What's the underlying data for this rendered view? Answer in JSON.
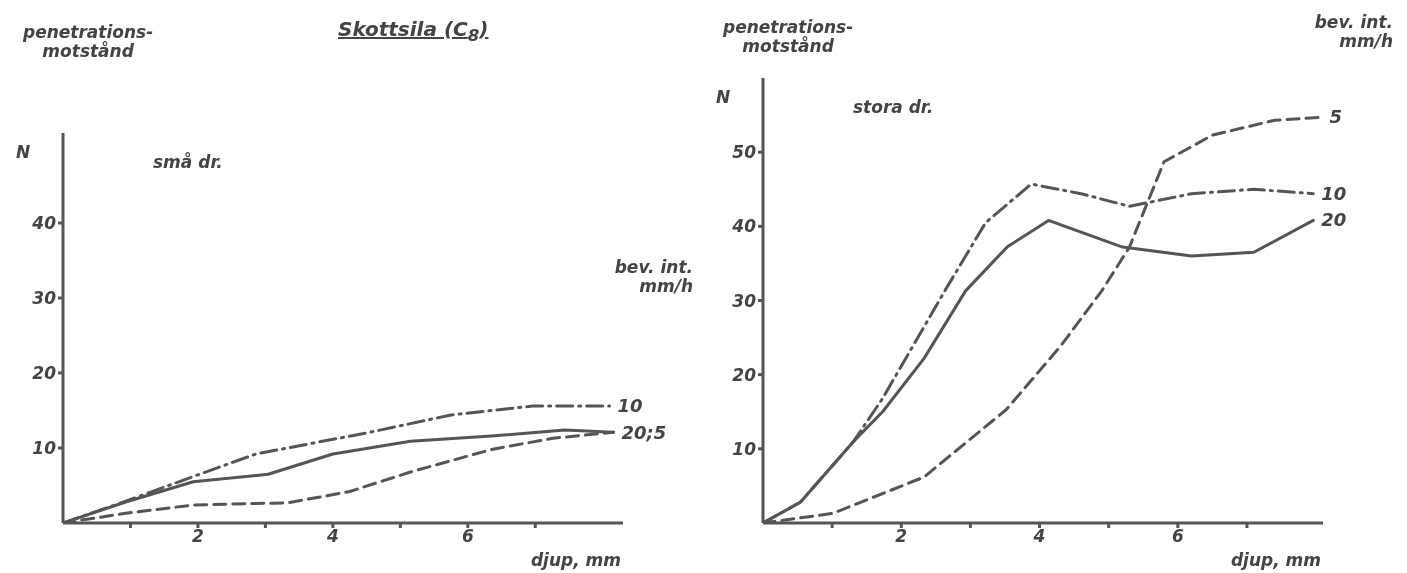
{
  "chart_data": [
    {
      "type": "line",
      "title": "Skottsila (C$_{8}$)",
      "subtitle": "små dr.",
      "ylabel": "penetrations-\nmotstånd",
      "xlabel": "djup, mm",
      "legend_title": "bev. int.\nmm/h",
      "annotations": [
        "N",
        {
          "text": "20;5",
          "x": 8.16,
          "y": 12.1
        }
      ],
      "xlim": [
        0,
        8.3
      ],
      "ylim": [
        0,
        52
      ],
      "xticks": [
        {
          "value": 1,
          "label": null
        },
        2,
        {
          "value": 3,
          "label": null
        },
        4,
        {
          "value": 5,
          "label": null
        },
        6,
        {
          "value": 7,
          "label": null
        }
      ],
      "yticks": [
        10,
        20,
        30,
        40
      ],
      "grid": false,
      "legend": false,
      "marker": "none",
      "series": [
        {
          "name": "10",
          "color": "#555555",
          "line_style": "dashdot",
          "x": [
            0,
            0.9,
            1.93,
            2.86,
            4.55,
            5.75,
            6.96,
            8.1
          ],
          "values": [
            0,
            2.8,
            6.2,
            9.2,
            12.1,
            14.4,
            15.6,
            15.6
          ]
        },
        {
          "color": "#555555",
          "line_style": "solid",
          "x": [
            0,
            0.93,
            1.93,
            3.04,
            4.0,
            5.15,
            6.35,
            7.44,
            8.16
          ],
          "values": [
            0,
            2.8,
            5.5,
            6.5,
            9.2,
            10.9,
            11.6,
            12.4,
            12.1
          ]
        },
        {
          "color": "#555555",
          "line_style": "dashed",
          "x": [
            0,
            0.93,
            1.93,
            3.34,
            4.25,
            5.15,
            6.35,
            7.26,
            8.16
          ],
          "values": [
            0,
            1.3,
            2.4,
            2.7,
            4.2,
            6.8,
            9.8,
            11.3,
            12.1
          ]
        }
      ]
    },
    {
      "type": "line",
      "subtitle": "stora dr.",
      "ylabel": "penetrations-\nmotstånd",
      "xlabel": "djup, mm",
      "legend_title": "bev. int.\nmm/h",
      "annotations": [
        "N"
      ],
      "xlim": [
        0,
        8.1
      ],
      "ylim": [
        0,
        60
      ],
      "xticks": [
        {
          "value": 1,
          "label": null
        },
        2,
        {
          "value": 3,
          "label": null
        },
        4,
        {
          "value": 5,
          "label": null
        },
        6,
        {
          "value": 7,
          "label": null
        }
      ],
      "yticks": [
        10,
        20,
        30,
        40,
        50
      ],
      "grid": false,
      "legend": false,
      "marker": "none",
      "series": [
        {
          "name": "5",
          "color": "#555555",
          "line_style": "dashed",
          "x": [
            0,
            1.01,
            2.33,
            3.52,
            4.3,
            4.9,
            5.3,
            5.8,
            6.5,
            7.4,
            8.08
          ],
          "values": [
            0,
            1.3,
            6.2,
            15.3,
            23.8,
            31.3,
            37.2,
            48.7,
            52.3,
            54.3,
            54.7
          ]
        },
        {
          "name": "10",
          "color": "#555555",
          "line_style": "dashdot",
          "x": [
            0,
            0.54,
            1.31,
            1.73,
            2.63,
            3.22,
            3.88,
            4.6,
            5.3,
            6.2,
            7.1,
            7.96
          ],
          "values": [
            0,
            2.8,
            11,
            16.8,
            31.3,
            40.5,
            45.7,
            44.4,
            42.7,
            44.4,
            45.0,
            44.4
          ]
        },
        {
          "name": "20",
          "color": "#555555",
          "line_style": "solid",
          "x": [
            0,
            0.54,
            1.31,
            1.73,
            2.33,
            2.93,
            3.53,
            4.13,
            5.2,
            6.2,
            7.1,
            7.96
          ],
          "values": [
            0,
            2.8,
            11,
            15,
            22.2,
            31.3,
            37.2,
            40.8,
            37.2,
            36.0,
            36.5,
            40.8
          ]
        }
      ]
    }
  ]
}
